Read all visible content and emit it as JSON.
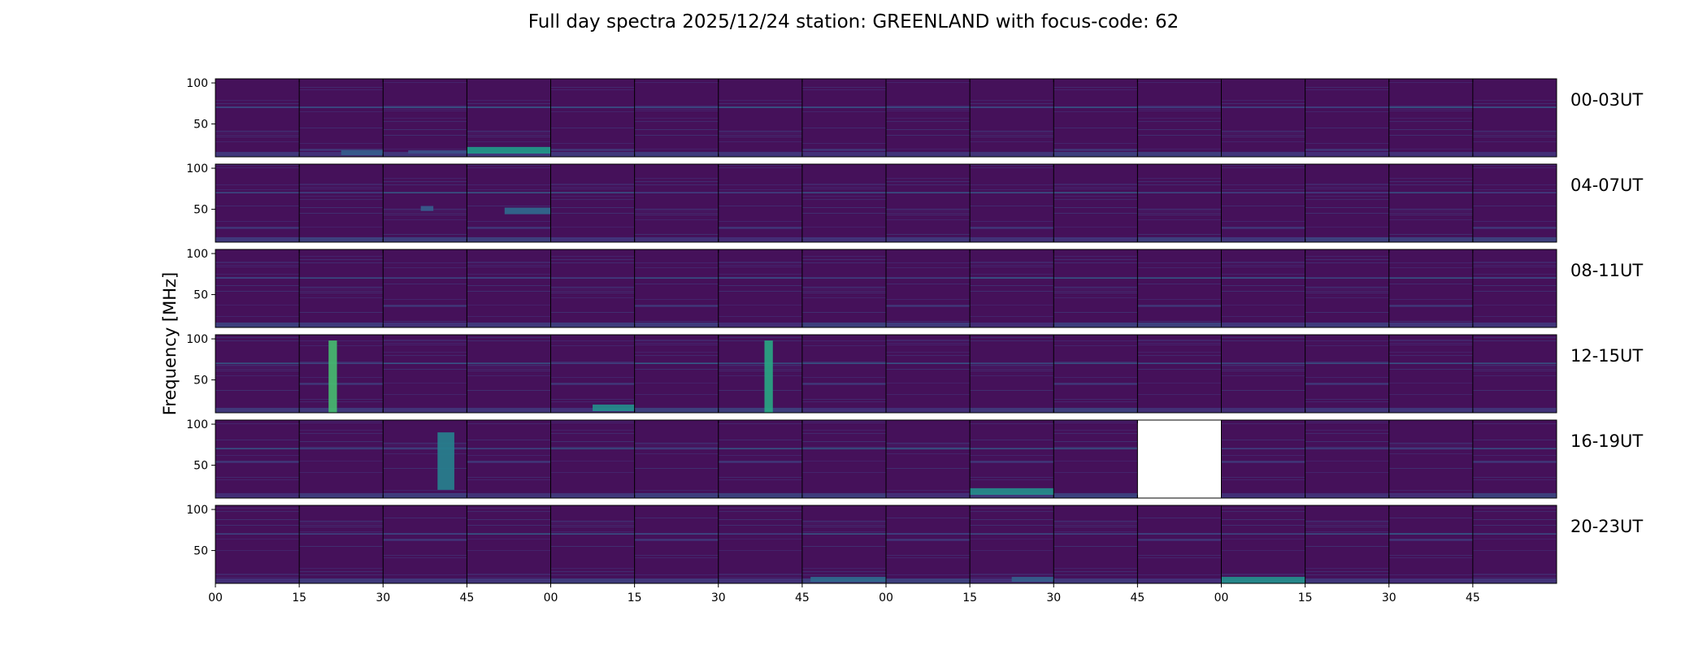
{
  "chart_data": {
    "type": "heatmap",
    "title": "Full day spectra 2025/12/24 station: GREENLAND with focus-code: 62",
    "ylabel": "Frequency [MHz]",
    "xlabel": "",
    "y_ticks": [
      100,
      50
    ],
    "ylim": [
      10,
      105
    ],
    "x_tick_labels": [
      "00",
      "15",
      "30",
      "45",
      "00",
      "15",
      "30",
      "45",
      "00",
      "15",
      "30",
      "45",
      "00",
      "15",
      "30",
      "45"
    ],
    "panels_per_row": 16,
    "minutes_per_panel": 15,
    "colormap": "viridis",
    "rows": [
      {
        "label": "00-03UT",
        "missing_panels": []
      },
      {
        "label": "04-07UT",
        "missing_panels": []
      },
      {
        "label": "08-11UT",
        "missing_panels": []
      },
      {
        "label": "12-15UT",
        "missing_panels": []
      },
      {
        "label": "16-19UT",
        "missing_panels": [
          11
        ]
      },
      {
        "label": "20-23UT",
        "missing_panels": []
      }
    ],
    "features": [
      {
        "row": 0,
        "panel": 3,
        "type": "band",
        "f0": 14,
        "f1": 22,
        "x0": 0.0,
        "x1": 1.0,
        "strength": 0.55
      },
      {
        "row": 0,
        "panel": 1,
        "type": "band",
        "f0": 12,
        "f1": 18,
        "x0": 0.5,
        "x1": 1.0,
        "strength": 0.3
      },
      {
        "row": 0,
        "panel": 2,
        "type": "band",
        "f0": 14,
        "f1": 18,
        "x0": 0.3,
        "x1": 1.0,
        "strength": 0.25
      },
      {
        "row": 1,
        "panel": 2,
        "type": "band",
        "f0": 48,
        "f1": 54,
        "x0": 0.45,
        "x1": 0.6,
        "strength": 0.3
      },
      {
        "row": 1,
        "panel": 3,
        "type": "band",
        "f0": 44,
        "f1": 52,
        "x0": 0.45,
        "x1": 1.0,
        "strength": 0.35
      },
      {
        "row": 3,
        "panel": 1,
        "type": "vertical",
        "f0": 10,
        "f1": 98,
        "x0": 0.35,
        "x1": 0.45,
        "strength": 0.7
      },
      {
        "row": 3,
        "panel": 6,
        "type": "vertical",
        "f0": 10,
        "f1": 98,
        "x0": 0.55,
        "x1": 0.65,
        "strength": 0.6
      },
      {
        "row": 3,
        "panel": 4,
        "type": "band",
        "f0": 12,
        "f1": 20,
        "x0": 0.5,
        "x1": 1.0,
        "strength": 0.5
      },
      {
        "row": 4,
        "panel": 9,
        "type": "band",
        "f0": 14,
        "f1": 22,
        "x0": 0.0,
        "x1": 1.0,
        "strength": 0.5
      },
      {
        "row": 4,
        "panel": 2,
        "type": "vertical",
        "f0": 20,
        "f1": 90,
        "x0": 0.65,
        "x1": 0.85,
        "strength": 0.45
      },
      {
        "row": 5,
        "panel": 12,
        "type": "band",
        "f0": 10,
        "f1": 18,
        "x0": 0.0,
        "x1": 1.0,
        "strength": 0.5
      },
      {
        "row": 5,
        "panel": 7,
        "type": "band",
        "f0": 12,
        "f1": 18,
        "x0": 0.1,
        "x1": 1.0,
        "strength": 0.35
      },
      {
        "row": 5,
        "panel": 9,
        "type": "band",
        "f0": 12,
        "f1": 18,
        "x0": 0.5,
        "x1": 1.0,
        "strength": 0.3
      }
    ]
  }
}
